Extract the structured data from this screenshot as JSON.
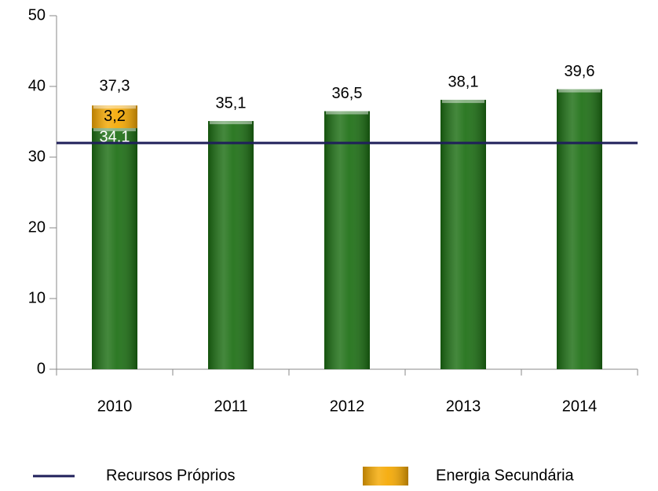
{
  "chart_data": {
    "type": "bar",
    "stacked": true,
    "categories": [
      "2010",
      "2011",
      "2012",
      "2013",
      "2014"
    ],
    "series": [
      {
        "color": "#1b6e12",
        "values": [
          34.1,
          35.1,
          36.5,
          38.1,
          39.6
        ],
        "value_labels": [
          "34,1",
          "35,1",
          "36,5",
          "38,1",
          "39,6"
        ]
      },
      {
        "name": "Energia Secundária",
        "color": "#f5a800",
        "values": [
          3.2,
          null,
          null,
          null,
          null
        ],
        "value_labels": [
          "3,2",
          null,
          null,
          null,
          null
        ]
      }
    ],
    "totals": [
      37.3,
      null,
      null,
      null,
      null
    ],
    "total_labels": [
      "37,3",
      null,
      null,
      null,
      null
    ],
    "reference_line": {
      "name": "Recursos Próprios",
      "value": 32,
      "color": "#1f1f5a"
    },
    "ylim": [
      0,
      50
    ],
    "yticks": [
      0,
      10,
      20,
      30,
      40,
      50
    ]
  }
}
